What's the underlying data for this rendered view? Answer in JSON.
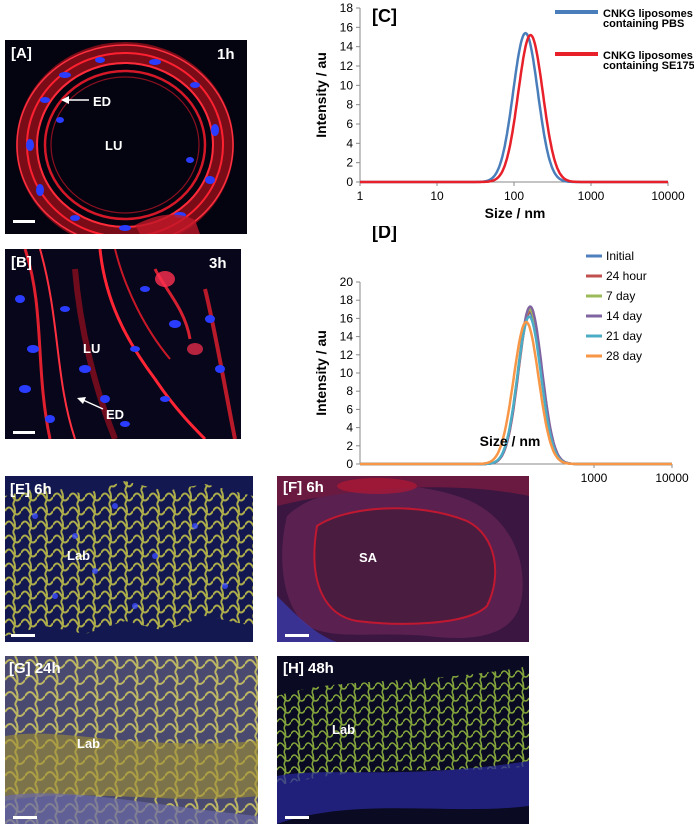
{
  "panels": {
    "A": {
      "label": "[A]",
      "time": "1h",
      "regions": [
        "ED",
        "LU"
      ]
    },
    "B": {
      "label": "[B]",
      "time": "3h",
      "regions": [
        "LU",
        "ED"
      ]
    },
    "E": {
      "label": "[E] 6h",
      "regions": [
        "Lab"
      ]
    },
    "F": {
      "label": "[F] 6h",
      "regions": [
        "SA"
      ]
    },
    "G": {
      "label": "[G] 24h",
      "regions": [
        "Lab"
      ]
    },
    "H": {
      "label": "[H] 48h",
      "regions": [
        "Lab"
      ]
    }
  },
  "colors": {
    "nuclei": "#2a3cff",
    "membrane": "#ff1e2a",
    "lab_stain": "#c8c84a",
    "pbs": "#4a7ebb",
    "se175": "#e8202a",
    "initial": "#4f7fbf",
    "h24": "#c0504d",
    "d7": "#9bbb59",
    "d14": "#8064a2",
    "d21": "#4bacc6",
    "d28": "#f79646"
  },
  "chart_data": [
    {
      "panel": "[C]",
      "type": "line",
      "xscale": "log",
      "xlabel": "Size / nm",
      "ylabel": "Intensity / au",
      "xlim": [
        1,
        10000
      ],
      "ylim": [
        0,
        18
      ],
      "xticks": [
        "1",
        "10",
        "100",
        "1000",
        "10000"
      ],
      "yticks": [
        "0",
        "2",
        "4",
        "6",
        "8",
        "10",
        "12",
        "14",
        "16",
        "18"
      ],
      "legend": "right",
      "series": [
        {
          "name": "CNKG liposomes containing PBS",
          "color": "#4a7ebb",
          "peak_x": 141,
          "peak_y": 15.4,
          "log_sigma": 0.16
        },
        {
          "name": "CNKG liposomes containing SE175",
          "color": "#e8202a",
          "peak_x": 164,
          "peak_y": 15.2,
          "log_sigma": 0.16
        }
      ]
    },
    {
      "panel": "[D]",
      "type": "line",
      "xscale": "log",
      "xlabel": "Size / nm",
      "ylabel": "Intensity / au",
      "xlim": [
        1,
        10000
      ],
      "ylim": [
        0,
        20
      ],
      "xticks": [
        "1000",
        "10000"
      ],
      "yticks": [
        "0",
        "2",
        "4",
        "6",
        "8",
        "10",
        "12",
        "14",
        "16",
        "18",
        "20"
      ],
      "legend": "top-right",
      "series": [
        {
          "name": "Initial",
          "color": "#4f7fbf",
          "peak_x": 150,
          "peak_y": 16.6,
          "log_sigma": 0.15
        },
        {
          "name": "24 hour",
          "color": "#c0504d",
          "peak_x": 152,
          "peak_y": 16.8,
          "log_sigma": 0.15
        },
        {
          "name": "7 day",
          "color": "#9bbb59",
          "peak_x": 150,
          "peak_y": 17.0,
          "log_sigma": 0.15
        },
        {
          "name": "14 day",
          "color": "#8064a2",
          "peak_x": 152,
          "peak_y": 17.3,
          "log_sigma": 0.15
        },
        {
          "name": "21 day",
          "color": "#4bacc6",
          "peak_x": 148,
          "peak_y": 16.2,
          "log_sigma": 0.15
        },
        {
          "name": "28 day",
          "color": "#f79646",
          "peak_x": 135,
          "peak_y": 15.6,
          "log_sigma": 0.16
        }
      ]
    }
  ]
}
